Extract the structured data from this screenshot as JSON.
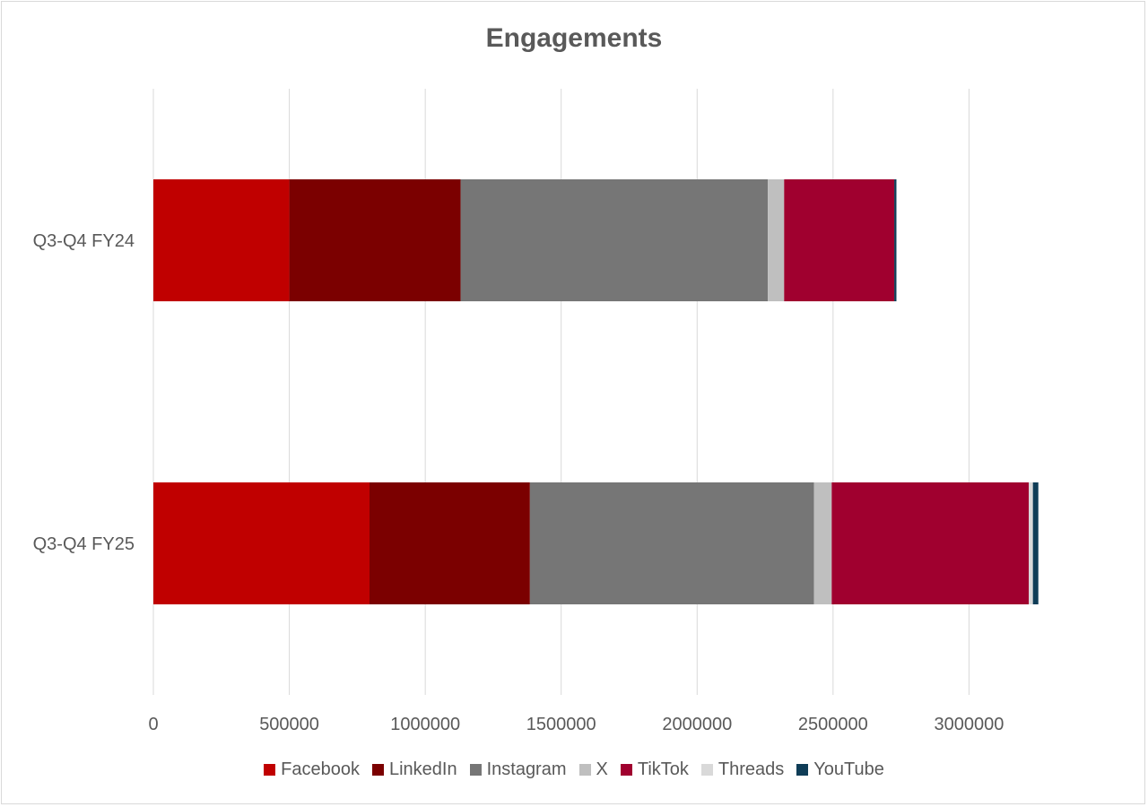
{
  "chart_data": {
    "type": "bar",
    "orientation": "horizontal",
    "stacked": true,
    "title": "Engagements",
    "categories": [
      "Q3-Q4 FY24",
      "Q3-Q4 FY25"
    ],
    "series": [
      {
        "name": "Facebook",
        "color": "#c00000",
        "values": [
          500000,
          795000
        ]
      },
      {
        "name": "LinkedIn",
        "color": "#7b0000",
        "values": [
          630000,
          590000
        ]
      },
      {
        "name": "Instagram",
        "color": "#767676",
        "values": [
          1130000,
          1045000
        ]
      },
      {
        "name": "X",
        "color": "#bfbfbf",
        "values": [
          60000,
          65000
        ]
      },
      {
        "name": "TikTok",
        "color": "#a0002f",
        "values": [
          405000,
          725000
        ]
      },
      {
        "name": "Threads",
        "color": "#d9d9d9",
        "values": [
          0,
          15000
        ]
      },
      {
        "name": "YouTube",
        "color": "#0f3d57",
        "values": [
          8000,
          20000
        ]
      }
    ],
    "xlim": [
      0,
      3500000
    ],
    "xticks": [
      "0",
      "500000",
      "1000000",
      "1500000",
      "2000000",
      "2500000",
      "3000000"
    ],
    "xtick_values": [
      0,
      500000,
      1000000,
      1500000,
      2000000,
      2500000,
      3000000
    ],
    "grid": "vertical",
    "legend": "bottom"
  }
}
